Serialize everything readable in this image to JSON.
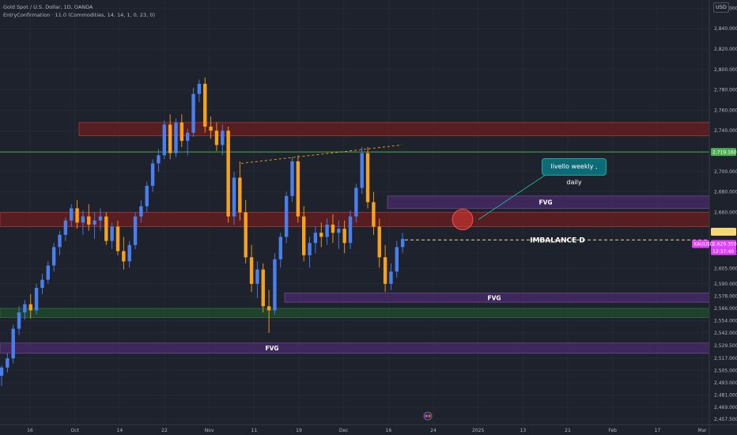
{
  "legend": {
    "symbol": "Gold Spot / U.S. Dollar, 1D, OANDA",
    "indicator": "EntryConfirmation · 11.0 (Commodities, 14, 14, 1, 0, 23, 0)"
  },
  "scale_currency": "USD",
  "colors": {
    "background": "#1e222d",
    "bull": "#4a7ff0",
    "bear": "#f7a21b",
    "grid": "#2a2e39",
    "supply_zone": "#6b1d1d",
    "fvg_zone": "#4a2a6b",
    "demand_zone": "#1f4d2b",
    "green_line": "#4caf50",
    "imbalance_line": "#f7d774",
    "callout": "#0b6b77",
    "circle": "#e53935"
  },
  "chart_data": {
    "type": "candlestick",
    "title": "Gold Spot / U.S. Dollar, 1D, OANDA",
    "x_ticks": [
      "16",
      "Oct",
      "14",
      "22",
      "Nov",
      "11",
      "19",
      "Dec",
      "16",
      "24",
      "2025",
      "13",
      "21",
      "Feb",
      "17",
      "Mar"
    ],
    "y_ticks": [
      "2,860.000",
      "2,840.000",
      "2,820.000",
      "2,800.000",
      "2,780.000",
      "2,760.000",
      "2,740.000",
      "2,700.000",
      "2,680.000",
      "2,660.000",
      "2,620.000",
      "2,605.000",
      "2,590.000",
      "2,578.000",
      "2,566.000",
      "2,554.000",
      "2,542.000",
      "2,529.500",
      "2,517.000",
      "2,505.000",
      "2,493.000",
      "2,481.000",
      "2,469.000",
      "2,457.500"
    ],
    "ylim": [
      2452,
      2868
    ],
    "price_labels": {
      "green_level": "2,719.160",
      "current_price": "2,629.350",
      "symbol_tag": "XAUUSD",
      "countdown": "12:37:40"
    },
    "candles": [
      [
        2500,
        2510,
        2490,
        2508
      ],
      [
        2508,
        2522,
        2503,
        2517
      ],
      [
        2517,
        2550,
        2512,
        2546
      ],
      [
        2546,
        2568,
        2540,
        2562
      ],
      [
        2562,
        2574,
        2555,
        2570
      ],
      [
        2570,
        2580,
        2556,
        2564
      ],
      [
        2564,
        2590,
        2560,
        2586
      ],
      [
        2586,
        2600,
        2580,
        2594
      ],
      [
        2594,
        2612,
        2590,
        2608
      ],
      [
        2608,
        2630,
        2602,
        2626
      ],
      [
        2626,
        2642,
        2618,
        2638
      ],
      [
        2638,
        2655,
        2632,
        2652
      ],
      [
        2652,
        2668,
        2646,
        2664
      ],
      [
        2664,
        2672,
        2644,
        2650
      ],
      [
        2650,
        2662,
        2638,
        2656
      ],
      [
        2656,
        2668,
        2642,
        2648
      ],
      [
        2648,
        2660,
        2634,
        2652
      ],
      [
        2652,
        2664,
        2642,
        2656
      ],
      [
        2656,
        2660,
        2628,
        2632
      ],
      [
        2632,
        2650,
        2624,
        2646
      ],
      [
        2646,
        2652,
        2618,
        2622
      ],
      [
        2622,
        2636,
        2604,
        2612
      ],
      [
        2612,
        2632,
        2606,
        2628
      ],
      [
        2628,
        2660,
        2624,
        2656
      ],
      [
        2656,
        2672,
        2650,
        2666
      ],
      [
        2666,
        2690,
        2660,
        2686
      ],
      [
        2686,
        2712,
        2680,
        2708
      ],
      [
        2708,
        2722,
        2700,
        2716
      ],
      [
        2716,
        2750,
        2712,
        2746
      ],
      [
        2746,
        2756,
        2712,
        2718
      ],
      [
        2718,
        2752,
        2714,
        2748
      ],
      [
        2748,
        2756,
        2724,
        2730
      ],
      [
        2730,
        2742,
        2716,
        2738
      ],
      [
        2738,
        2782,
        2734,
        2776
      ],
      [
        2776,
        2790,
        2768,
        2786
      ],
      [
        2786,
        2792,
        2738,
        2744
      ],
      [
        2744,
        2754,
        2732,
        2740
      ],
      [
        2740,
        2748,
        2720,
        2726
      ],
      [
        2726,
        2746,
        2716,
        2740
      ],
      [
        2740,
        2744,
        2650,
        2656
      ],
      [
        2656,
        2700,
        2648,
        2694
      ],
      [
        2694,
        2710,
        2652,
        2660
      ],
      [
        2660,
        2672,
        2610,
        2616
      ],
      [
        2616,
        2628,
        2582,
        2590
      ],
      [
        2590,
        2612,
        2576,
        2604
      ],
      [
        2604,
        2610,
        2562,
        2568
      ],
      [
        2568,
        2584,
        2542,
        2564
      ],
      [
        2564,
        2620,
        2560,
        2614
      ],
      [
        2614,
        2640,
        2606,
        2636
      ],
      [
        2636,
        2680,
        2630,
        2676
      ],
      [
        2676,
        2714,
        2670,
        2710
      ],
      [
        2710,
        2716,
        2650,
        2656
      ],
      [
        2656,
        2666,
        2612,
        2618
      ],
      [
        2618,
        2636,
        2606,
        2630
      ],
      [
        2630,
        2646,
        2620,
        2640
      ],
      [
        2640,
        2650,
        2626,
        2636
      ],
      [
        2636,
        2654,
        2628,
        2648
      ],
      [
        2648,
        2658,
        2630,
        2640
      ],
      [
        2640,
        2652,
        2624,
        2644
      ],
      [
        2644,
        2652,
        2620,
        2630
      ],
      [
        2630,
        2662,
        2624,
        2656
      ],
      [
        2656,
        2688,
        2650,
        2684
      ],
      [
        2684,
        2724,
        2678,
        2718
      ],
      [
        2718,
        2724,
        2664,
        2670
      ],
      [
        2670,
        2680,
        2638,
        2646
      ],
      [
        2646,
        2654,
        2606,
        2616
      ],
      [
        2616,
        2628,
        2582,
        2590
      ],
      [
        2590,
        2610,
        2584,
        2602
      ],
      [
        2602,
        2632,
        2596,
        2626
      ],
      [
        2626,
        2640,
        2620,
        2634
      ]
    ],
    "zones": [
      {
        "type": "supply",
        "top": 2748,
        "bottom": 2735
      },
      {
        "type": "supply",
        "top": 2660,
        "bottom": 2646
      },
      {
        "type": "fvg",
        "top": 2676,
        "bottom": 2664,
        "label": "FVG"
      },
      {
        "type": "fvg",
        "top": 2581,
        "bottom": 2572,
        "label": "FVG"
      },
      {
        "type": "demand",
        "top": 2566,
        "bottom": 2557
      },
      {
        "type": "fvg",
        "top": 2532,
        "bottom": 2522,
        "label": "FVG"
      }
    ],
    "levels": {
      "green_line": 2719.16,
      "imbalance": 2633,
      "imbalance_label": "IMBALANCE D"
    },
    "trendline": {
      "from": [
        2708,
        2711
      ],
      "to": [
        2726,
        2726
      ]
    },
    "callout_text": "livello weekly , daily"
  }
}
